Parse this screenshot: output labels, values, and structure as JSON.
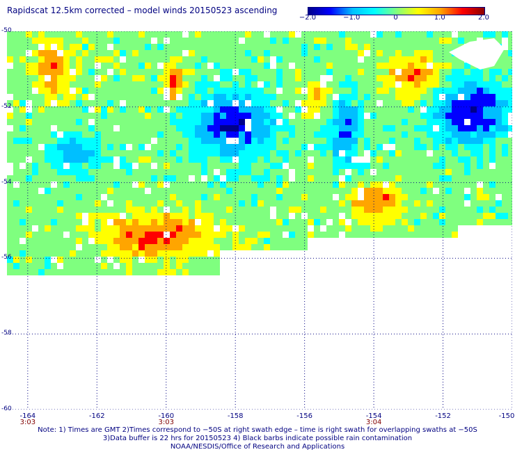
{
  "title": "Rapidscat 12.5km corrected – model winds 20150523 ascending",
  "colorbar": {
    "ticks": [
      "−2.0",
      "−1.0",
      "0",
      "1.0",
      "2.0"
    ],
    "tick_values": [
      -2.0,
      -1.0,
      0,
      1.0,
      2.0
    ],
    "range": [
      -2.0,
      2.0
    ],
    "colors": [
      "#00008b",
      "#0000ff",
      "#00bfff",
      "#00ffff",
      "#7fff7f",
      "#ffff00",
      "#ffa500",
      "#ff0000",
      "#8b0000"
    ]
  },
  "map": {
    "lat_labels": [
      "-50",
      "-52",
      "-54",
      "-56",
      "-58",
      "-60"
    ],
    "lat_values": [
      -50,
      -52,
      -54,
      -56,
      -58,
      -60
    ],
    "lon_labels": [
      "-164",
      "-162",
      "-160",
      "-158",
      "-156",
      "-154",
      "-152",
      "-150"
    ],
    "lon_values": [
      -164,
      -162,
      -160,
      -158,
      -156,
      -154,
      -152,
      -150
    ],
    "lon_range": [
      -164.6,
      -150
    ],
    "lat_range": [
      -50,
      -60
    ],
    "time_labels": [
      {
        "text": "3:03",
        "lon": -164
      },
      {
        "text": "3:03",
        "lon": -160
      },
      {
        "text": "3:04",
        "lon": -154
      }
    ],
    "grid": "dotted",
    "swath_southern_edge_lat": -56.4
  },
  "notes": {
    "line1": "Note: 1) Times are GMT 2)Times correspond to −50S at right swath edge – time is right swath for overlapping swaths at −50S",
    "line2": "3)Data buffer is 22 hrs for 20150523 4) Black barbs indicate possible rain contamination",
    "line3": "NOAA/NESDIS/Office of Research and Applications"
  }
}
